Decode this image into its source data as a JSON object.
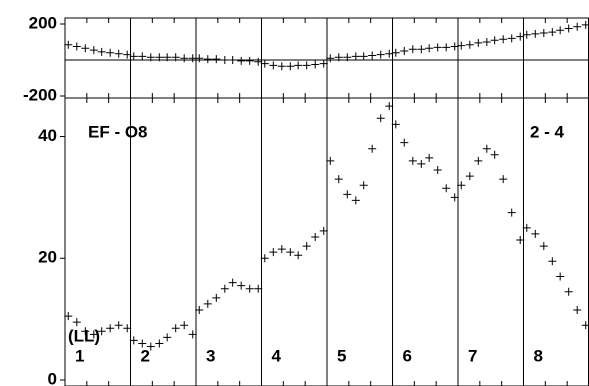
{
  "chart_data": [
    {
      "type": "scatter",
      "marker": "+",
      "color": "#000000",
      "x": [
        0.05,
        0.18,
        0.31,
        0.44,
        0.56,
        0.69,
        0.82,
        0.95,
        1.05,
        1.18,
        1.31,
        1.44,
        1.56,
        1.69,
        1.82,
        1.95,
        2.05,
        2.18,
        2.31,
        2.44,
        2.56,
        2.69,
        2.82,
        2.95,
        3.05,
        3.18,
        3.31,
        3.44,
        3.56,
        3.69,
        3.82,
        3.95,
        4.05,
        4.18,
        4.31,
        4.44,
        4.56,
        4.69,
        4.82,
        4.95,
        5.05,
        5.18,
        5.31,
        5.44,
        5.56,
        5.69,
        5.82,
        5.95,
        6.05,
        6.18,
        6.31,
        6.44,
        6.56,
        6.69,
        6.82,
        6.95,
        7.05,
        7.18,
        7.31,
        7.44,
        7.56,
        7.69,
        7.82,
        7.95
      ],
      "values": [
        85,
        75,
        65,
        55,
        45,
        40,
        35,
        30,
        20,
        20,
        15,
        15,
        15,
        15,
        10,
        10,
        10,
        5,
        5,
        0,
        0,
        -5,
        -5,
        -10,
        -20,
        -30,
        -35,
        -35,
        -30,
        -30,
        -25,
        -20,
        10,
        15,
        15,
        20,
        20,
        25,
        30,
        35,
        40,
        50,
        60,
        60,
        65,
        70,
        70,
        75,
        80,
        85,
        95,
        100,
        110,
        115,
        120,
        130,
        140,
        145,
        150,
        155,
        165,
        175,
        185,
        195
      ],
      "xlim": [
        0,
        8
      ],
      "ylim": [
        -200,
        200
      ],
      "yticks": [
        -200,
        200
      ],
      "hline": 0
    },
    {
      "type": "scatter",
      "marker": "+",
      "color": "#000000",
      "x": [
        0.05,
        0.18,
        0.31,
        0.44,
        0.56,
        0.69,
        0.82,
        0.95,
        1.05,
        1.18,
        1.31,
        1.44,
        1.56,
        1.69,
        1.82,
        1.95,
        2.05,
        2.18,
        2.31,
        2.44,
        2.56,
        2.69,
        2.82,
        2.95,
        3.05,
        3.18,
        3.31,
        3.44,
        3.56,
        3.69,
        3.82,
        3.95,
        4.05,
        4.18,
        4.31,
        4.44,
        4.56,
        4.69,
        4.82,
        4.95,
        5.05,
        5.18,
        5.31,
        5.44,
        5.56,
        5.69,
        5.82,
        5.95,
        6.05,
        6.18,
        6.31,
        6.44,
        6.56,
        6.69,
        6.82,
        6.95,
        7.05,
        7.18,
        7.31,
        7.44,
        7.56,
        7.69,
        7.82,
        7.95
      ],
      "values": [
        10.5,
        9.5,
        8,
        7.5,
        8,
        8.5,
        9,
        8.5,
        6.5,
        6,
        5.5,
        6,
        7,
        8.5,
        9,
        7.5,
        11.5,
        12.5,
        13.5,
        15,
        16,
        15.5,
        15,
        15,
        20,
        21,
        21.5,
        21,
        20.5,
        22,
        23.5,
        24.5,
        36,
        33,
        30.5,
        29.5,
        32,
        38,
        43,
        45,
        42,
        39,
        36,
        35.5,
        36.5,
        34.5,
        31.5,
        30,
        32,
        33.5,
        36,
        38,
        37,
        33,
        27.5,
        23,
        25,
        24,
        22,
        19.5,
        17,
        14.5,
        11.5,
        9
      ],
      "xlim": [
        0,
        8
      ],
      "ylim": [
        0,
        46
      ],
      "yticks": [
        0,
        20,
        40
      ],
      "segment_labels": [
        "1",
        "2",
        "3",
        "4",
        "5",
        "6",
        "7",
        "8"
      ],
      "annotations": [
        "EF - O8",
        "2 - 4",
        "(LL)"
      ]
    }
  ]
}
